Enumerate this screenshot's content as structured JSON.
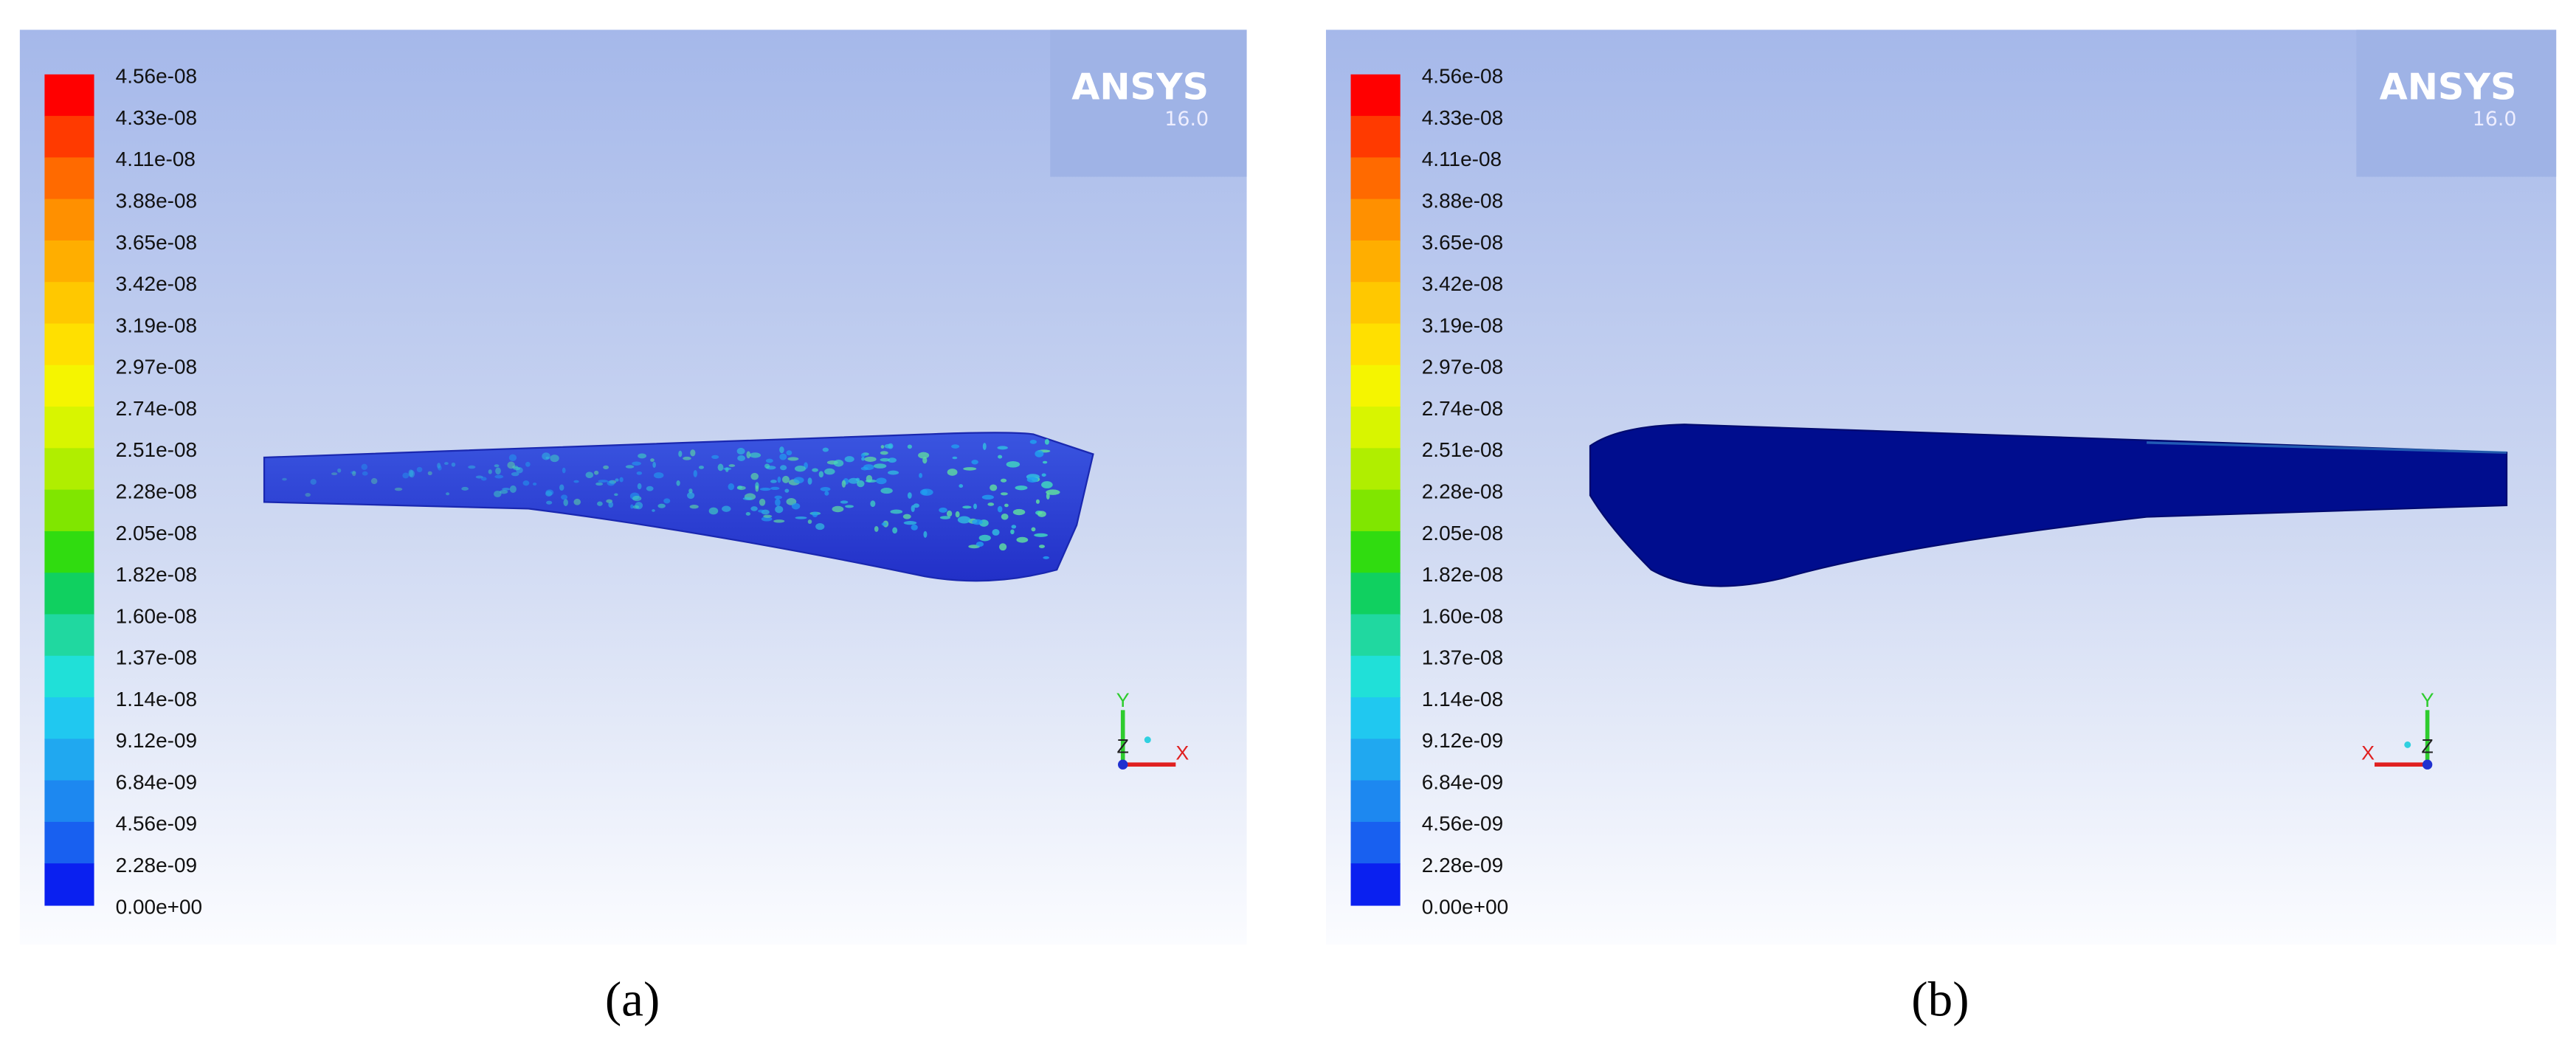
{
  "panels": [
    {
      "legend_labels": [
        "4.56e-08",
        "4.33e-08",
        "4.11e-08",
        "3.88e-08",
        "3.65e-08",
        "3.42e-08",
        "3.19e-08",
        "2.97e-08",
        "2.74e-08",
        "2.51e-08",
        "2.28e-08",
        "2.05e-08",
        "1.82e-08",
        "1.60e-08",
        "1.37e-08",
        "1.14e-08",
        "9.12e-09",
        "6.84e-09",
        "4.56e-09",
        "2.28e-09",
        "0.00e+00"
      ],
      "logo": "ANSYS",
      "version": "16.0",
      "axes": {
        "x": "X",
        "y": "Y",
        "z": "Z"
      },
      "caption": "(a)"
    },
    {
      "legend_labels": [
        "4.56e-08",
        "4.33e-08",
        "4.11e-08",
        "3.88e-08",
        "3.65e-08",
        "3.42e-08",
        "3.19e-08",
        "2.97e-08",
        "2.74e-08",
        "2.51e-08",
        "2.28e-08",
        "2.05e-08",
        "1.82e-08",
        "1.60e-08",
        "1.37e-08",
        "1.14e-08",
        "9.12e-09",
        "6.84e-09",
        "4.56e-09",
        "2.28e-09",
        "0.00e+00"
      ],
      "logo": "ANSYS",
      "version": "16.0",
      "axes": {
        "x": "X",
        "y": "Y",
        "z": "Z"
      },
      "caption": "(b)"
    }
  ]
}
